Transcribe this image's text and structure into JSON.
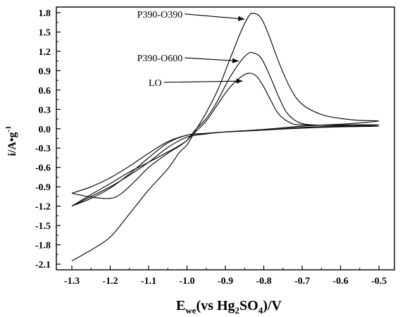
{
  "chart_data": {
    "type": "line",
    "title": "",
    "xlabel": {
      "main": "E",
      "sub1": "we",
      "mid": "(vs Hg",
      "sub2": "2",
      "mid2": "SO",
      "sub3": "4",
      "end": ")/V"
    },
    "ylabel": {
      "main": "i/A•g",
      "sup": "-1"
    },
    "xlim": [
      -1.3,
      -0.5
    ],
    "ylim": [
      -2.1,
      1.8
    ],
    "x_ticks": [
      "-1.3",
      "-1.2",
      "-1.1",
      "-1.0",
      "-0.9",
      "-0.8",
      "-0.7",
      "-0.6",
      "-0.5"
    ],
    "y_ticks": [
      "-2.1",
      "-1.8",
      "-1.5",
      "-1.2",
      "-0.9",
      "-0.6",
      "-0.3",
      "0.0",
      "0.3",
      "0.6",
      "0.9",
      "1.2",
      "1.5",
      "1.8"
    ],
    "grid": false,
    "series": [
      {
        "name": "P390-O390",
        "points": [
          [
            -1.3,
            -2.05
          ],
          [
            -1.25,
            -1.88
          ],
          [
            -1.2,
            -1.68
          ],
          [
            -1.15,
            -1.32
          ],
          [
            -1.1,
            -0.95
          ],
          [
            -1.05,
            -0.62
          ],
          [
            -1.02,
            -0.37
          ],
          [
            -1.0,
            -0.25
          ],
          [
            -0.98,
            -0.05
          ],
          [
            -0.95,
            0.25
          ],
          [
            -0.92,
            0.6
          ],
          [
            -0.89,
            1.05
          ],
          [
            -0.86,
            1.5
          ],
          [
            -0.84,
            1.74
          ],
          [
            -0.83,
            1.79
          ],
          [
            -0.81,
            1.74
          ],
          [
            -0.79,
            1.5
          ],
          [
            -0.76,
            1.02
          ],
          [
            -0.73,
            0.62
          ],
          [
            -0.7,
            0.38
          ],
          [
            -0.65,
            0.22
          ],
          [
            -0.6,
            0.16
          ],
          [
            -0.55,
            0.13
          ],
          [
            -0.5,
            0.12
          ],
          [
            -0.55,
            0.09
          ],
          [
            -0.6,
            0.07
          ],
          [
            -0.7,
            0.04
          ],
          [
            -0.8,
            -0.01
          ],
          [
            -0.9,
            -0.05
          ],
          [
            -0.95,
            -0.08
          ],
          [
            -1.0,
            -0.13
          ],
          [
            -1.05,
            -0.29
          ],
          [
            -1.1,
            -0.52
          ],
          [
            -1.15,
            -0.72
          ],
          [
            -1.2,
            -0.9
          ],
          [
            -1.25,
            -1.05
          ],
          [
            -1.3,
            -1.2
          ]
        ]
      },
      {
        "name": "P390-O600",
        "points": [
          [
            -1.3,
            -1.2
          ],
          [
            -1.25,
            -1.02
          ],
          [
            -1.2,
            -0.85
          ],
          [
            -1.15,
            -0.67
          ],
          [
            -1.1,
            -0.52
          ],
          [
            -1.05,
            -0.36
          ],
          [
            -1.02,
            -0.26
          ],
          [
            -1.0,
            -0.18
          ],
          [
            -0.98,
            -0.03
          ],
          [
            -0.95,
            0.16
          ],
          [
            -0.92,
            0.44
          ],
          [
            -0.89,
            0.78
          ],
          [
            -0.86,
            1.05
          ],
          [
            -0.84,
            1.17
          ],
          [
            -0.83,
            1.18
          ],
          [
            -0.81,
            1.12
          ],
          [
            -0.79,
            0.9
          ],
          [
            -0.76,
            0.48
          ],
          [
            -0.74,
            0.25
          ],
          [
            -0.71,
            0.1
          ],
          [
            -0.67,
            0.06
          ],
          [
            -0.6,
            0.06
          ],
          [
            -0.5,
            0.06
          ],
          [
            -0.6,
            0.04
          ],
          [
            -0.7,
            0.02
          ],
          [
            -0.8,
            -0.02
          ],
          [
            -0.9,
            -0.05
          ],
          [
            -0.95,
            -0.07
          ],
          [
            -1.0,
            -0.1
          ],
          [
            -1.05,
            -0.2
          ],
          [
            -1.1,
            -0.38
          ],
          [
            -1.15,
            -0.58
          ],
          [
            -1.2,
            -0.76
          ],
          [
            -1.25,
            -0.9
          ],
          [
            -1.3,
            -1.0
          ]
        ]
      },
      {
        "name": "LO",
        "points": [
          [
            -1.3,
            -1.0
          ],
          [
            -1.25,
            -1.06
          ],
          [
            -1.2,
            -1.08
          ],
          [
            -1.17,
            -1.0
          ],
          [
            -1.13,
            -0.78
          ],
          [
            -1.1,
            -0.6
          ],
          [
            -1.05,
            -0.38
          ],
          [
            -1.02,
            -0.27
          ],
          [
            -1.0,
            -0.18
          ],
          [
            -0.98,
            -0.06
          ],
          [
            -0.95,
            0.12
          ],
          [
            -0.92,
            0.38
          ],
          [
            -0.89,
            0.63
          ],
          [
            -0.86,
            0.8
          ],
          [
            -0.84,
            0.86
          ],
          [
            -0.82,
            0.82
          ],
          [
            -0.8,
            0.65
          ],
          [
            -0.78,
            0.42
          ],
          [
            -0.76,
            0.22
          ],
          [
            -0.73,
            0.09
          ],
          [
            -0.7,
            0.06
          ],
          [
            -0.6,
            0.05
          ],
          [
            -0.5,
            0.04
          ],
          [
            -0.6,
            0.03
          ],
          [
            -0.7,
            0.01
          ],
          [
            -0.8,
            -0.02
          ],
          [
            -0.9,
            -0.05
          ],
          [
            -0.95,
            -0.07
          ],
          [
            -1.0,
            -0.1
          ],
          [
            -1.05,
            -0.22
          ],
          [
            -1.1,
            -0.45
          ],
          [
            -1.15,
            -0.7
          ],
          [
            -1.2,
            -0.92
          ],
          [
            -1.25,
            -1.08
          ],
          [
            -1.3,
            -1.2
          ]
        ]
      }
    ],
    "annotations": [
      {
        "text": "P390-O390",
        "target": [
          -0.85,
          1.7
        ],
        "label_at": [
          -1.13,
          1.78
        ]
      },
      {
        "text": "P390-O600",
        "target": [
          -0.865,
          1.05
        ],
        "label_at": [
          -1.13,
          1.1
        ]
      },
      {
        "text": "LO",
        "target": [
          -0.855,
          0.74
        ],
        "label_at": [
          -1.1,
          0.72
        ]
      }
    ]
  }
}
